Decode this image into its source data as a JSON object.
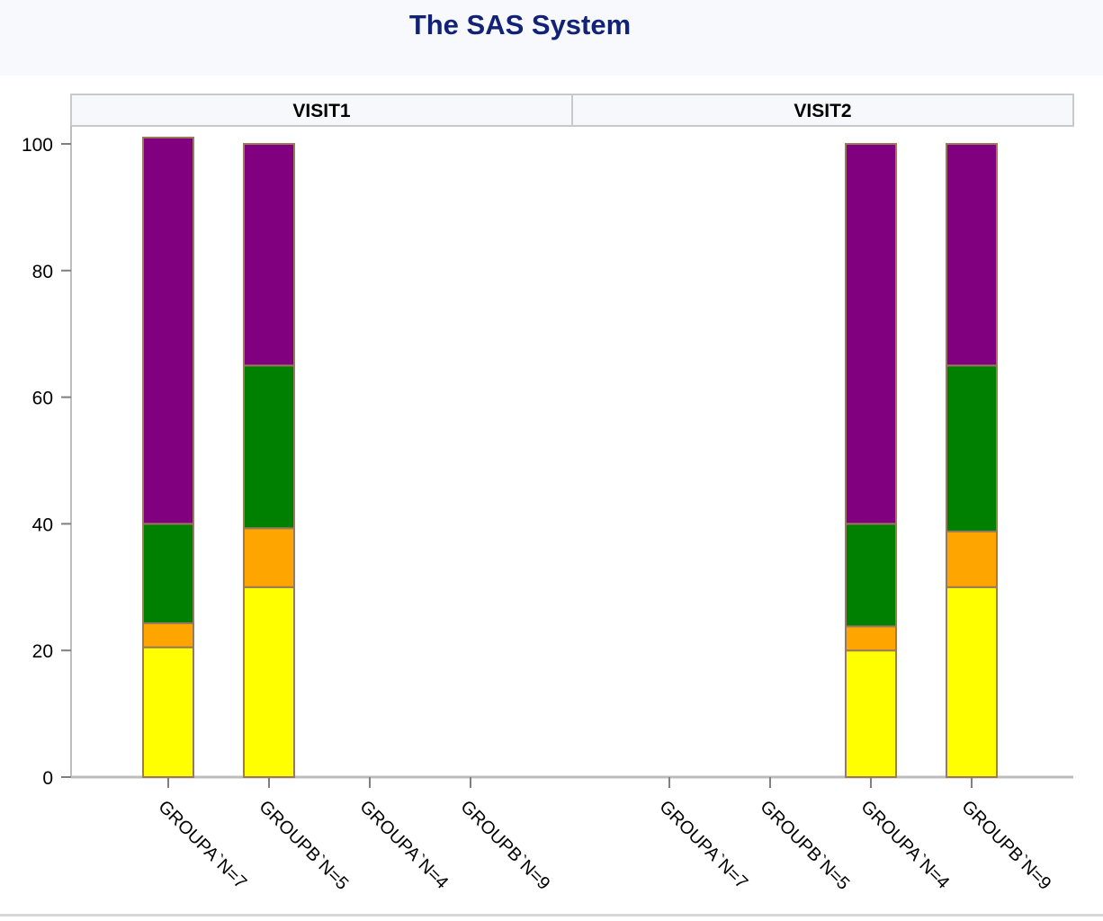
{
  "title": "The SAS System",
  "chart_data": {
    "type": "bar",
    "stacked": true,
    "panels": [
      "VISIT1",
      "VISIT2"
    ],
    "categories": [
      "GROUPA`N=7",
      "GROUPB`N=5",
      "GROUPA`N=4",
      "GROUPB`N=9"
    ],
    "ylim": [
      0,
      100
    ],
    "yticks": [
      "0",
      "20",
      "40",
      "60",
      "80",
      "100"
    ],
    "legend": "none",
    "grid": false,
    "colors": [
      "#ffff00",
      "#ffa500",
      "#008000",
      "#800080"
    ],
    "bars": [
      {
        "panel": 0,
        "category": 0,
        "segments": [
          20.5,
          3.8,
          15.7,
          61
        ]
      },
      {
        "panel": 0,
        "category": 1,
        "segments": [
          30,
          9.3,
          25.7,
          35
        ]
      },
      {
        "panel": 1,
        "category": 2,
        "segments": [
          20,
          3.8,
          16.2,
          60
        ]
      },
      {
        "panel": 1,
        "category": 3,
        "segments": [
          30,
          8.8,
          26.2,
          35
        ]
      }
    ]
  }
}
